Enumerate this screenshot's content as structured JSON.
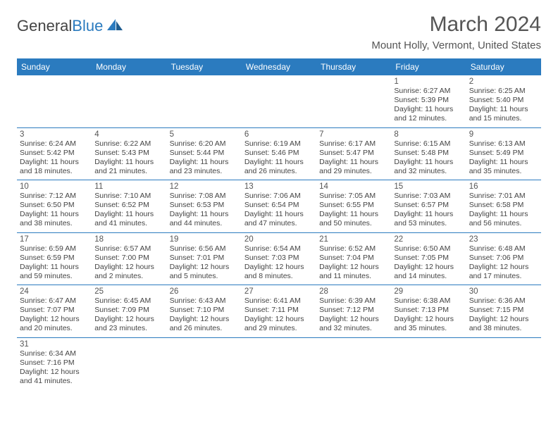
{
  "brand": {
    "name_a": "General",
    "name_b": "Blue",
    "logo_color": "#2b7bbf"
  },
  "title": "March 2024",
  "location": "Mount Holly, Vermont, United States",
  "colors": {
    "header_bg": "#2b7bbf",
    "header_text": "#ffffff",
    "rule": "#2b7bbf",
    "text": "#444444",
    "title_color": "#555555"
  },
  "dow": [
    "Sunday",
    "Monday",
    "Tuesday",
    "Wednesday",
    "Thursday",
    "Friday",
    "Saturday"
  ],
  "weeks": [
    [
      null,
      null,
      null,
      null,
      null,
      {
        "n": "1",
        "sunrise": "6:27 AM",
        "sunset": "5:39 PM",
        "daylight": "11 hours and 12 minutes."
      },
      {
        "n": "2",
        "sunrise": "6:25 AM",
        "sunset": "5:40 PM",
        "daylight": "11 hours and 15 minutes."
      }
    ],
    [
      {
        "n": "3",
        "sunrise": "6:24 AM",
        "sunset": "5:42 PM",
        "daylight": "11 hours and 18 minutes."
      },
      {
        "n": "4",
        "sunrise": "6:22 AM",
        "sunset": "5:43 PM",
        "daylight": "11 hours and 21 minutes."
      },
      {
        "n": "5",
        "sunrise": "6:20 AM",
        "sunset": "5:44 PM",
        "daylight": "11 hours and 23 minutes."
      },
      {
        "n": "6",
        "sunrise": "6:19 AM",
        "sunset": "5:46 PM",
        "daylight": "11 hours and 26 minutes."
      },
      {
        "n": "7",
        "sunrise": "6:17 AM",
        "sunset": "5:47 PM",
        "daylight": "11 hours and 29 minutes."
      },
      {
        "n": "8",
        "sunrise": "6:15 AM",
        "sunset": "5:48 PM",
        "daylight": "11 hours and 32 minutes."
      },
      {
        "n": "9",
        "sunrise": "6:13 AM",
        "sunset": "5:49 PM",
        "daylight": "11 hours and 35 minutes."
      }
    ],
    [
      {
        "n": "10",
        "sunrise": "7:12 AM",
        "sunset": "6:50 PM",
        "daylight": "11 hours and 38 minutes."
      },
      {
        "n": "11",
        "sunrise": "7:10 AM",
        "sunset": "6:52 PM",
        "daylight": "11 hours and 41 minutes."
      },
      {
        "n": "12",
        "sunrise": "7:08 AM",
        "sunset": "6:53 PM",
        "daylight": "11 hours and 44 minutes."
      },
      {
        "n": "13",
        "sunrise": "7:06 AM",
        "sunset": "6:54 PM",
        "daylight": "11 hours and 47 minutes."
      },
      {
        "n": "14",
        "sunrise": "7:05 AM",
        "sunset": "6:55 PM",
        "daylight": "11 hours and 50 minutes."
      },
      {
        "n": "15",
        "sunrise": "7:03 AM",
        "sunset": "6:57 PM",
        "daylight": "11 hours and 53 minutes."
      },
      {
        "n": "16",
        "sunrise": "7:01 AM",
        "sunset": "6:58 PM",
        "daylight": "11 hours and 56 minutes."
      }
    ],
    [
      {
        "n": "17",
        "sunrise": "6:59 AM",
        "sunset": "6:59 PM",
        "daylight": "11 hours and 59 minutes."
      },
      {
        "n": "18",
        "sunrise": "6:57 AM",
        "sunset": "7:00 PM",
        "daylight": "12 hours and 2 minutes."
      },
      {
        "n": "19",
        "sunrise": "6:56 AM",
        "sunset": "7:01 PM",
        "daylight": "12 hours and 5 minutes."
      },
      {
        "n": "20",
        "sunrise": "6:54 AM",
        "sunset": "7:03 PM",
        "daylight": "12 hours and 8 minutes."
      },
      {
        "n": "21",
        "sunrise": "6:52 AM",
        "sunset": "7:04 PM",
        "daylight": "12 hours and 11 minutes."
      },
      {
        "n": "22",
        "sunrise": "6:50 AM",
        "sunset": "7:05 PM",
        "daylight": "12 hours and 14 minutes."
      },
      {
        "n": "23",
        "sunrise": "6:48 AM",
        "sunset": "7:06 PM",
        "daylight": "12 hours and 17 minutes."
      }
    ],
    [
      {
        "n": "24",
        "sunrise": "6:47 AM",
        "sunset": "7:07 PM",
        "daylight": "12 hours and 20 minutes."
      },
      {
        "n": "25",
        "sunrise": "6:45 AM",
        "sunset": "7:09 PM",
        "daylight": "12 hours and 23 minutes."
      },
      {
        "n": "26",
        "sunrise": "6:43 AM",
        "sunset": "7:10 PM",
        "daylight": "12 hours and 26 minutes."
      },
      {
        "n": "27",
        "sunrise": "6:41 AM",
        "sunset": "7:11 PM",
        "daylight": "12 hours and 29 minutes."
      },
      {
        "n": "28",
        "sunrise": "6:39 AM",
        "sunset": "7:12 PM",
        "daylight": "12 hours and 32 minutes."
      },
      {
        "n": "29",
        "sunrise": "6:38 AM",
        "sunset": "7:13 PM",
        "daylight": "12 hours and 35 minutes."
      },
      {
        "n": "30",
        "sunrise": "6:36 AM",
        "sunset": "7:15 PM",
        "daylight": "12 hours and 38 minutes."
      }
    ],
    [
      {
        "n": "31",
        "sunrise": "6:34 AM",
        "sunset": "7:16 PM",
        "daylight": "12 hours and 41 minutes."
      },
      null,
      null,
      null,
      null,
      null,
      null
    ]
  ],
  "labels": {
    "sunrise": "Sunrise:",
    "sunset": "Sunset:",
    "daylight": "Daylight:"
  }
}
